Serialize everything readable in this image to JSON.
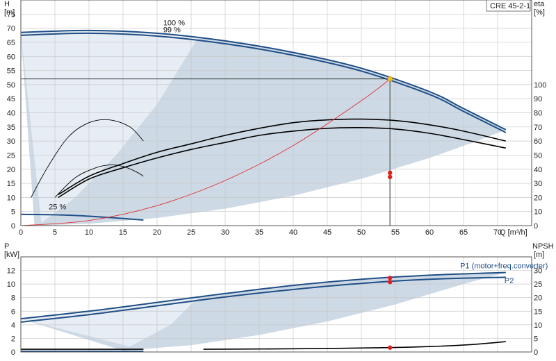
{
  "colors": {
    "grid": "#c8c8c8",
    "region_dark": "#cdd9e5",
    "region_light": "#e6edf4",
    "head_curve": "#1f4e86",
    "eta_curve": "#000000",
    "power_curve": "#1f4e86",
    "npsh_curve": "#000000",
    "system_curve": "#e03030",
    "duty_point": "#f0c020",
    "marker": "#e02020",
    "label_p1": "#1f4e86"
  },
  "chart_data": [
    {
      "id": "qh",
      "type": "line",
      "title": "CRE 45-2-1",
      "xlabel": "Q [m³/h]",
      "ylabel_left": "H [m]",
      "ylabel_right": "eta [%]",
      "left_title": "H",
      "left_unit": "[m]",
      "right_title": "eta",
      "right_unit": "[%]",
      "xlim": [
        0,
        75
      ],
      "ylim": [
        0,
        80
      ],
      "ylim_right": [
        0,
        160
      ],
      "x_ticks": [
        0,
        5,
        10,
        15,
        20,
        25,
        30,
        35,
        40,
        45,
        50,
        55,
        60,
        65,
        70
      ],
      "y_ticks": [
        0,
        5,
        10,
        15,
        20,
        25,
        30,
        35,
        40,
        45,
        50,
        55,
        60,
        65,
        70,
        75
      ],
      "y_ticks_right": [
        0,
        10,
        20,
        30,
        40,
        50,
        60,
        70,
        80,
        90,
        100
      ],
      "grid": true,
      "speed_labels": [
        {
          "text": "100 %",
          "x": 20.9,
          "y": 71.0
        },
        {
          "text": "99 %",
          "x": 20.9,
          "y": 68.5
        },
        {
          "text": "25 %",
          "x": 4.1,
          "y": 5.8
        }
      ],
      "duty_point": {
        "x": 54.2,
        "y": 52.0
      },
      "hline_y": 52.0,
      "vline_x": 54.2,
      "series": [
        {
          "kind": "head",
          "x": [
            0,
            10,
            20,
            30,
            40,
            50,
            60,
            65,
            71.2
          ],
          "y": [
            68.5,
            69.2,
            68.2,
            65.5,
            61.4,
            55.8,
            47.5,
            41.5,
            34.0
          ]
        },
        {
          "kind": "head",
          "x": [
            0,
            10,
            20,
            30,
            40,
            50,
            60,
            65,
            71.2
          ],
          "y": [
            67.5,
            68.2,
            67.2,
            64.5,
            60.4,
            54.8,
            46.5,
            40.5,
            33.0
          ]
        },
        {
          "kind": "head",
          "x": [
            0,
            8,
            18
          ],
          "y": [
            4.0,
            3.6,
            2.0
          ]
        },
        {
          "kind": "eta",
          "x": [
            5.5,
            10,
            15,
            20,
            25,
            30,
            35,
            40,
            45,
            50,
            55,
            60,
            65,
            71.2
          ],
          "y": [
            22,
            35,
            44,
            52,
            58,
            64,
            69,
            73,
            75,
            75.5,
            74.5,
            71.5,
            67,
            60
          ]
        },
        {
          "kind": "eta",
          "x": [
            5.5,
            10,
            15,
            20,
            25,
            30,
            35,
            40,
            45,
            50,
            55,
            60,
            65,
            71.2
          ],
          "y": [
            20,
            33,
            41,
            48,
            54,
            59,
            64,
            67,
            69,
            69.5,
            68.5,
            65.5,
            61,
            55
          ]
        },
        {
          "kind": "eta",
          "x": [
            1.5,
            4,
            7,
            10,
            13,
            16,
            18
          ],
          "y": [
            20,
            42,
            63,
            73,
            75,
            70,
            60
          ]
        },
        {
          "kind": "eta",
          "x": [
            5,
            8,
            11,
            13,
            15,
            17,
            18
          ],
          "y": [
            20,
            34,
            41,
            43,
            42,
            38,
            35
          ]
        },
        {
          "kind": "system",
          "x": [
            0,
            10,
            20,
            30,
            40,
            50,
            54.2
          ],
          "y": [
            0,
            1.8,
            7.1,
            16.0,
            28.4,
            44.3,
            52.0
          ]
        }
      ],
      "markers": [
        {
          "x": 54.2,
          "y": 37.5,
          "kind": "eta"
        },
        {
          "x": 54.2,
          "y": 34.5,
          "kind": "eta"
        }
      ],
      "regions": [
        {
          "name": "full-range",
          "x": [
            0,
            10,
            20,
            30,
            40,
            50,
            60,
            65,
            71.2,
            67,
            60,
            50,
            40,
            30,
            20,
            10,
            2
          ],
          "y": [
            68.5,
            69.2,
            68.2,
            65.5,
            61.4,
            55.8,
            47.5,
            41.5,
            34.0,
            30.0,
            24.0,
            16.6,
            10.6,
            6.0,
            2.7,
            0.7,
            0
          ]
        },
        {
          "name": "reduced-speed",
          "x": [
            0,
            10,
            20,
            26,
            20,
            14,
            8,
            3
          ],
          "y": [
            68.5,
            69.2,
            68.2,
            66.5,
            43,
            25,
            10,
            1
          ]
        }
      ]
    },
    {
      "id": "power",
      "type": "line",
      "xlim": [
        0,
        75
      ],
      "ylim": [
        0,
        14
      ],
      "ylim_right": [
        0,
        35
      ],
      "left_title": "P",
      "left_unit": "[kW]",
      "right_title": "NPSH",
      "right_unit": "[m]",
      "y_ticks": [
        0,
        2,
        4,
        6,
        8,
        10,
        12
      ],
      "y_ticks_right": [
        0,
        5,
        10,
        15,
        20,
        25,
        30
      ],
      "grid": true,
      "curve_labels": [
        {
          "text": "P1 (motor+freq.converter)",
          "x": 64.5,
          "y": 12.3
        },
        {
          "text": "P2",
          "x": 71.0,
          "y": 10.1
        }
      ],
      "series": [
        {
          "kind": "power",
          "x": [
            0,
            10,
            20,
            30,
            40,
            50,
            60,
            71.2
          ],
          "y": [
            4.9,
            6.0,
            7.3,
            8.6,
            9.8,
            10.7,
            11.3,
            11.7
          ]
        },
        {
          "kind": "power",
          "x": [
            0,
            10,
            20,
            30,
            40,
            50,
            60,
            71.2
          ],
          "y": [
            4.4,
            5.5,
            6.8,
            8.1,
            9.2,
            10.1,
            10.7,
            11.0
          ]
        },
        {
          "kind": "power",
          "x": [
            0,
            18
          ],
          "y": [
            0.1,
            0.1
          ]
        },
        {
          "kind": "npsh",
          "x": [
            26.8,
            35,
            45,
            54.2,
            60,
            66,
            71.2
          ],
          "y": [
            1.0,
            1.1,
            1.3,
            1.6,
            2.0,
            2.7,
            3.8
          ]
        },
        {
          "kind": "npsh",
          "x": [
            0,
            18
          ],
          "y": [
            1.0,
            1.0
          ]
        }
      ],
      "markers": [
        {
          "x": 54.2,
          "y": 10.9,
          "kind": "power"
        },
        {
          "x": 54.2,
          "y": 10.3,
          "kind": "power"
        },
        {
          "x": 54.2,
          "y": 1.6,
          "kind": "npsh"
        }
      ],
      "regions": [
        {
          "name": "full-range",
          "x": [
            0,
            10,
            20,
            30,
            40,
            50,
            60,
            71.2,
            65,
            55,
            45,
            35,
            25,
            15
          ],
          "y": [
            4.9,
            6.0,
            7.3,
            8.6,
            9.8,
            10.7,
            11.3,
            11.7,
            10.0,
            7.0,
            4.5,
            2.5,
            1.0,
            0.2
          ]
        },
        {
          "name": "reduced-speed",
          "x": [
            0,
            10,
            20,
            26,
            22,
            16
          ],
          "y": [
            4.9,
            6.0,
            7.3,
            8.0,
            4.0,
            0.8
          ]
        }
      ]
    }
  ]
}
